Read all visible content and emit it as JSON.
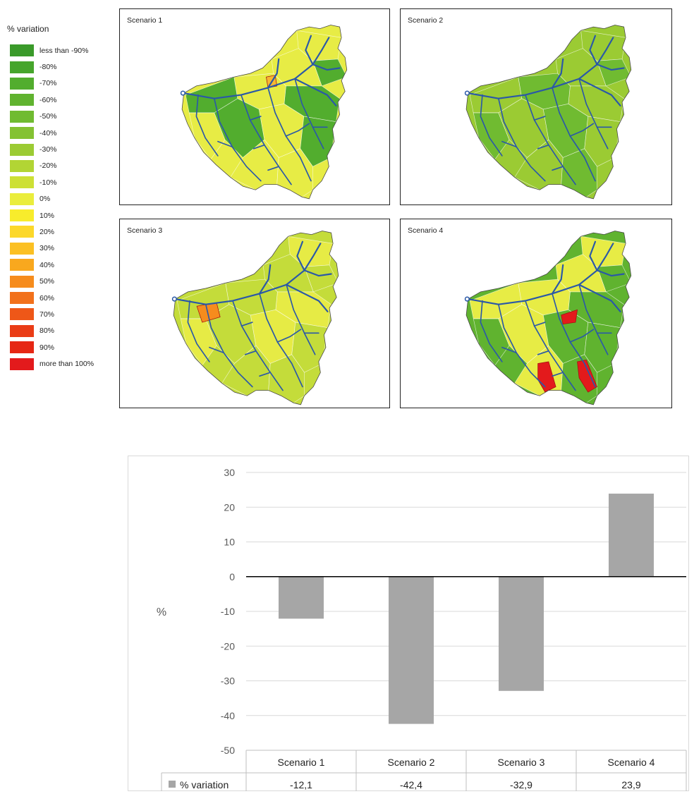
{
  "legend": {
    "title": "% variation",
    "items": [
      {
        "label": "less than -90%",
        "color": "#3a9a2a"
      },
      {
        "label": "-80%",
        "color": "#46a52c"
      },
      {
        "label": "-70%",
        "color": "#52ad2e"
      },
      {
        "label": "-60%",
        "color": "#60b32f"
      },
      {
        "label": "-50%",
        "color": "#70bb31"
      },
      {
        "label": "-40%",
        "color": "#84c232"
      },
      {
        "label": "-30%",
        "color": "#9bcb33"
      },
      {
        "label": "-20%",
        "color": "#b2d534"
      },
      {
        "label": "-10%",
        "color": "#cde035"
      },
      {
        "label": "0%",
        "color": "#eaed3c"
      },
      {
        "label": "10%",
        "color": "#f8ec2c"
      },
      {
        "label": "20%",
        "color": "#fcd82a"
      },
      {
        "label": "30%",
        "color": "#fbc023"
      },
      {
        "label": "40%",
        "color": "#f9a81e"
      },
      {
        "label": "50%",
        "color": "#f68c1d"
      },
      {
        "label": "60%",
        "color": "#f2711b"
      },
      {
        "label": "70%",
        "color": "#ee5718"
      },
      {
        "label": "80%",
        "color": "#ea3c16"
      },
      {
        "label": "90%",
        "color": "#e62714"
      },
      {
        "label": "more than 100%",
        "color": "#e31a1c"
      }
    ]
  },
  "maps": [
    {
      "title": "Scenario 1",
      "base_color": "#e7ec45",
      "accent_color": "#52ad2e",
      "hot_color": "#f7b731"
    },
    {
      "title": "Scenario 2",
      "base_color": "#9bcb33",
      "accent_color": "#70bb31",
      "hot_color": "#e2e83d"
    },
    {
      "title": "Scenario 3",
      "base_color": "#c4dc3a",
      "accent_color": "#e6eb45",
      "hot_color": "#f68c1d"
    },
    {
      "title": "Scenario 4",
      "base_color": "#60b32f",
      "accent_color": "#e7ec45",
      "hot_color": "#e31a1c"
    }
  ],
  "river_color": "#2a58a8",
  "chart_data": {
    "type": "bar",
    "categories": [
      "Scenario 1",
      "Scenario 2",
      "Scenario 3",
      "Scenario 4"
    ],
    "series": [
      {
        "name": "% variation",
        "values": [
          -12.1,
          -42.4,
          -32.9,
          23.9
        ]
      }
    ],
    "value_labels": [
      "-12,1",
      "-42,4",
      "-32,9",
      "23,9"
    ],
    "ylabel": "%",
    "ylim": [
      -50,
      30
    ],
    "yticks": [
      30,
      20,
      10,
      0,
      -10,
      -20,
      -30,
      -40,
      -50
    ],
    "grid": true,
    "bar_color": "#a6a6a6",
    "data_table": true
  }
}
